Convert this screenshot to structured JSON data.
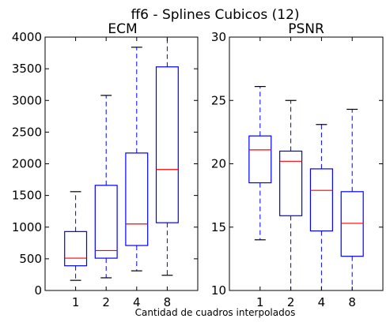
{
  "figure": {
    "suptitle": "ff6 - Splines Cubicos (12)",
    "xlabel": "Cantidad de cuadros interpolados"
  },
  "colors": {
    "box": "#0000ff",
    "median": "#ff0000",
    "whisker": "#0000ff",
    "cap": "#000000",
    "axes": "#000000"
  },
  "chart_data": [
    {
      "type": "box",
      "title": "ECM",
      "categories": [
        "1",
        "2",
        "4",
        "8"
      ],
      "ylim": [
        0,
        4000
      ],
      "yticks": [
        0,
        500,
        1000,
        1500,
        2000,
        2500,
        3000,
        3500,
        4000
      ],
      "grid": false,
      "boxes": [
        {
          "whislo": 160,
          "q1": 390,
          "med": 510,
          "q3": 930,
          "whishi": 1560
        },
        {
          "whislo": 200,
          "q1": 510,
          "med": 630,
          "q3": 1660,
          "whishi": 3080
        },
        {
          "whislo": 310,
          "q1": 710,
          "med": 1050,
          "q3": 2170,
          "whishi": 3840
        },
        {
          "whislo": 240,
          "q1": 1070,
          "med": 1910,
          "q3": 3530,
          "whishi": 4000
        }
      ]
    },
    {
      "type": "box",
      "title": "PSNR",
      "categories": [
        "1",
        "2",
        "4",
        "8"
      ],
      "ylim": [
        10,
        30
      ],
      "yticks": [
        10,
        15,
        20,
        25,
        30
      ],
      "grid": false,
      "boxes": [
        {
          "whislo": 14.0,
          "q1": 18.5,
          "med": 21.1,
          "q3": 22.2,
          "whishi": 26.1
        },
        {
          "whislo": 10.0,
          "q1": 15.9,
          "med": 20.2,
          "q3": 21.0,
          "whishi": 25.0
        },
        {
          "whislo": 10.0,
          "q1": 14.7,
          "med": 17.9,
          "q3": 19.6,
          "whishi": 23.1
        },
        {
          "whislo": 10.0,
          "q1": 12.7,
          "med": 15.3,
          "q3": 17.8,
          "whishi": 24.3
        }
      ]
    }
  ]
}
